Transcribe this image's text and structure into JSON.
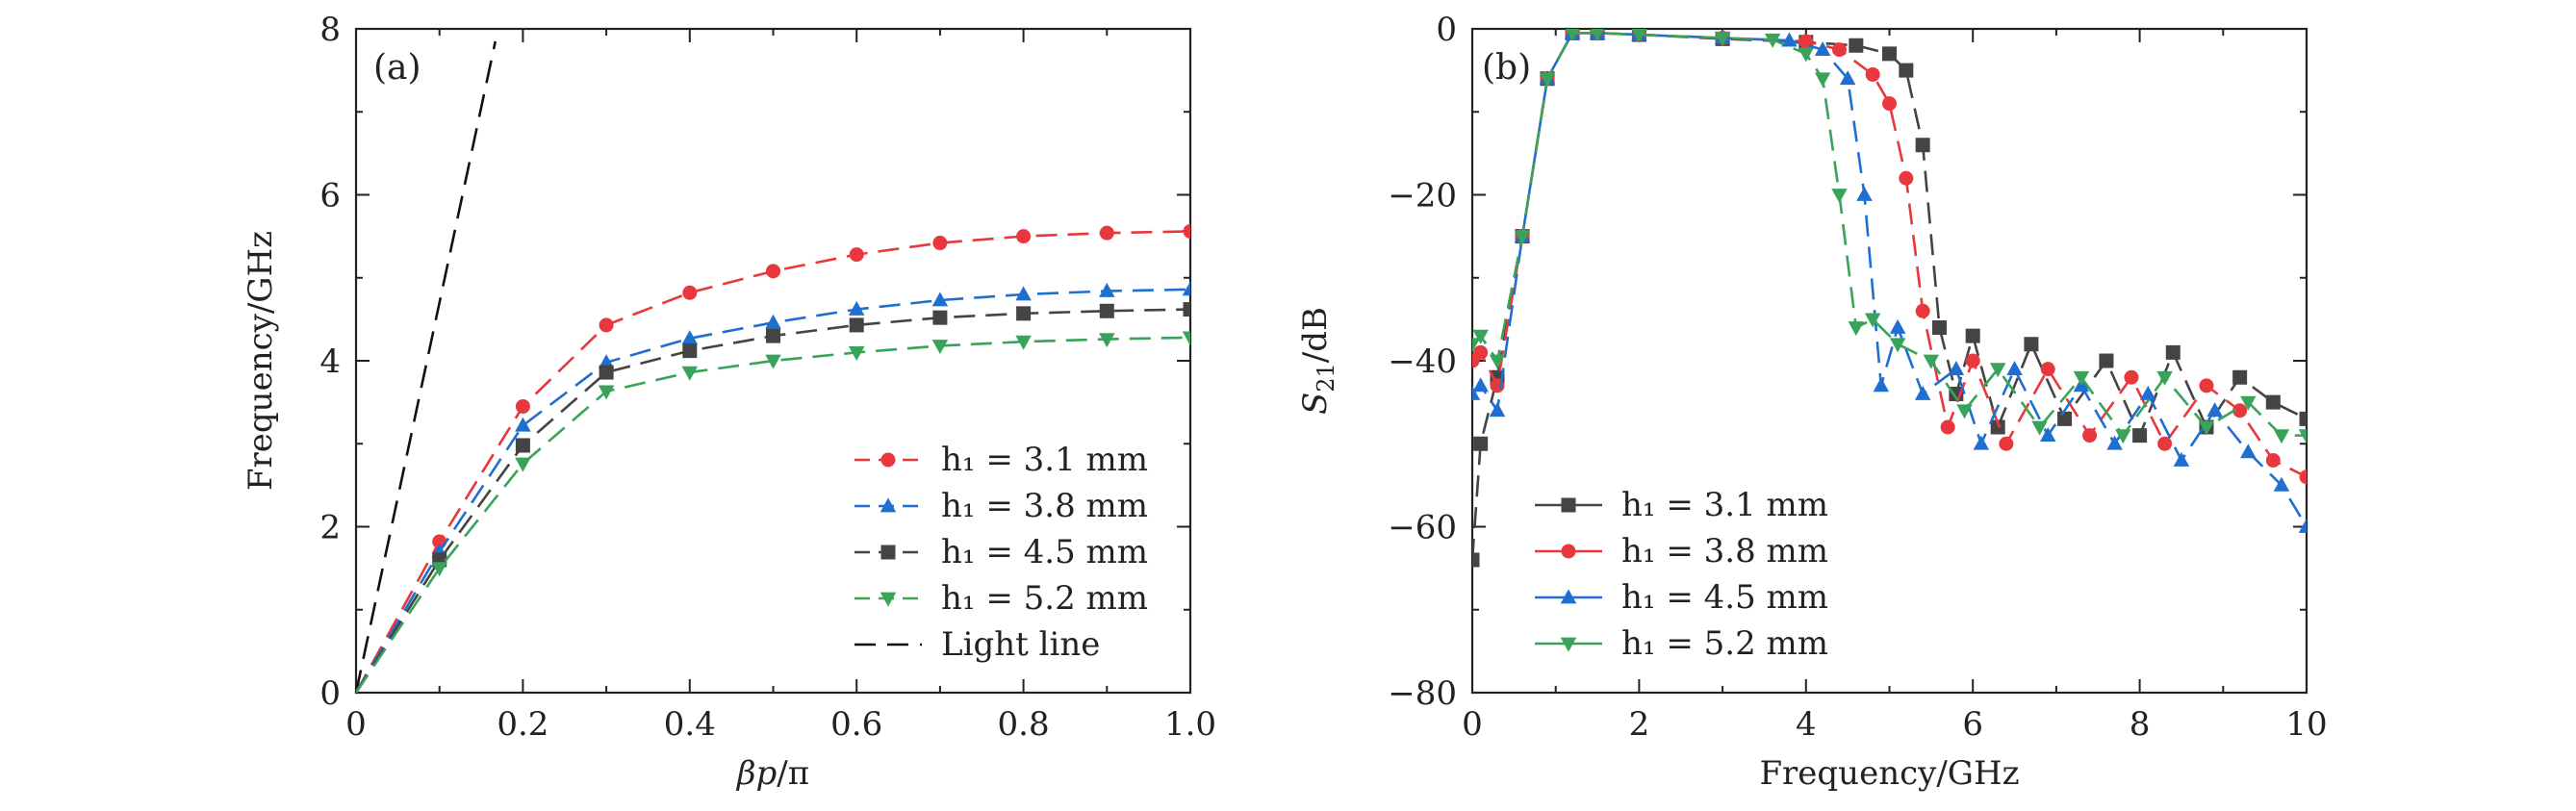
{
  "chart_data": [
    {
      "type": "line",
      "panel_label": "(a)",
      "xlabel": "βp/π",
      "ylabel": "Frequency/GHz",
      "xlim": [
        0,
        1.0
      ],
      "ylim": [
        0,
        8
      ],
      "xticks": [
        "0",
        "0.2",
        "0.4",
        "0.6",
        "0.8",
        "1.0"
      ],
      "yticks": [
        "0",
        "2",
        "4",
        "6",
        "8"
      ],
      "legend_position": "bottom-right",
      "x": [
        0,
        0.1,
        0.2,
        0.3,
        0.4,
        0.5,
        0.6,
        0.7,
        0.8,
        0.9,
        1.0
      ],
      "series": [
        {
          "name": "h1 = 3.1 mm",
          "legend_label": "h₁ = 3.1 mm",
          "color": "#e8383d",
          "marker": "circle",
          "values": [
            0,
            1.82,
            3.45,
            4.43,
            4.82,
            5.08,
            5.28,
            5.42,
            5.5,
            5.54,
            5.56
          ]
        },
        {
          "name": "h1 = 3.8 mm",
          "legend_label": "h₁ = 3.8 mm",
          "color": "#1f6fd0",
          "marker": "triangle-up",
          "values": [
            0,
            1.7,
            3.22,
            3.98,
            4.27,
            4.46,
            4.62,
            4.73,
            4.8,
            4.84,
            4.86
          ]
        },
        {
          "name": "h1 = 4.5 mm",
          "legend_label": "h₁ = 4.5 mm",
          "color": "#444444",
          "marker": "square",
          "values": [
            0,
            1.6,
            2.98,
            3.86,
            4.12,
            4.3,
            4.43,
            4.52,
            4.57,
            4.6,
            4.62
          ]
        },
        {
          "name": "h1 = 5.2 mm",
          "legend_label": "h₁ = 5.2 mm",
          "color": "#3aa35a",
          "marker": "triangle-down",
          "values": [
            0,
            1.5,
            2.76,
            3.63,
            3.86,
            4.0,
            4.1,
            4.18,
            4.23,
            4.26,
            4.28
          ]
        }
      ],
      "light_line": {
        "name": "Light line",
        "color": "#111111",
        "x": [
          0,
          0.167
        ],
        "y": [
          0,
          7.85
        ]
      }
    },
    {
      "type": "line",
      "panel_label": "(b)",
      "xlabel": "Frequency/GHz",
      "ylabel": "S21/dB",
      "xlim": [
        0,
        10
      ],
      "ylim": [
        -80,
        0
      ],
      "xticks": [
        "0",
        "2",
        "4",
        "6",
        "8",
        "10"
      ],
      "yticks": [
        "0",
        "−20",
        "−40",
        "−60",
        "−80"
      ],
      "legend_position": "bottom-left",
      "series": [
        {
          "name": "h1 = 3.1 mm",
          "legend_label": "h₁ = 3.1 mm",
          "color": "#444444",
          "marker": "square",
          "x": [
            0,
            0.1,
            0.3,
            0.6,
            0.9,
            1.2,
            1.5,
            2,
            3,
            4,
            4.6,
            5.0,
            5.2,
            5.4,
            5.6,
            5.8,
            6.0,
            6.3,
            6.7,
            7.1,
            7.6,
            8.0,
            8.4,
            8.8,
            9.2,
            9.6,
            10
          ],
          "values": [
            -64,
            -50,
            -42,
            -25,
            -6,
            -0.5,
            -0.5,
            -0.7,
            -1.2,
            -1.6,
            -2,
            -3,
            -5,
            -14,
            -36,
            -44,
            -37,
            -48,
            -38,
            -47,
            -40,
            -49,
            -39,
            -48,
            -42,
            -45,
            -47
          ]
        },
        {
          "name": "h1 = 3.8 mm",
          "legend_label": "h₁ = 3.8 mm",
          "color": "#e8383d",
          "marker": "circle",
          "x": [
            0,
            0.1,
            0.3,
            0.6,
            0.9,
            1.2,
            1.5,
            2,
            3,
            4,
            4.4,
            4.8,
            5.0,
            5.2,
            5.4,
            5.7,
            6.0,
            6.4,
            6.9,
            7.4,
            7.9,
            8.3,
            8.8,
            9.2,
            9.6,
            10
          ],
          "values": [
            -40,
            -39,
            -43,
            -25,
            -6,
            -0.5,
            -0.5,
            -0.7,
            -1.1,
            -1.5,
            -2.5,
            -5.5,
            -9,
            -18,
            -34,
            -48,
            -40,
            -50,
            -41,
            -49,
            -42,
            -50,
            -43,
            -46,
            -52,
            -54
          ]
        },
        {
          "name": "h1 = 4.5 mm",
          "legend_label": "h₁ = 4.5 mm",
          "color": "#1f6fd0",
          "marker": "triangle-up",
          "x": [
            0,
            0.1,
            0.3,
            0.6,
            0.9,
            1.2,
            1.5,
            2,
            3,
            3.8,
            4.2,
            4.5,
            4.7,
            4.9,
            5.1,
            5.4,
            5.8,
            6.1,
            6.5,
            6.9,
            7.3,
            7.7,
            8.1,
            8.5,
            8.9,
            9.3,
            9.7,
            10
          ],
          "values": [
            -44,
            -43,
            -46,
            -25,
            -6,
            -0.5,
            -0.5,
            -0.7,
            -1.1,
            -1.4,
            -2.5,
            -6,
            -20,
            -43,
            -36,
            -44,
            -41,
            -50,
            -41,
            -49,
            -43,
            -50,
            -44,
            -52,
            -46,
            -51,
            -55,
            -60
          ]
        },
        {
          "name": "h1 = 5.2 mm",
          "legend_label": "h₁ = 5.2 mm",
          "color": "#3aa35a",
          "marker": "triangle-down",
          "x": [
            0,
            0.1,
            0.3,
            0.6,
            0.9,
            1.2,
            1.5,
            2,
            3,
            3.6,
            4.0,
            4.2,
            4.4,
            4.6,
            4.8,
            5.1,
            5.5,
            5.9,
            6.3,
            6.8,
            7.3,
            7.8,
            8.3,
            8.8,
            9.3,
            9.7,
            10
          ],
          "values": [
            -38,
            -37,
            -40,
            -25,
            -6,
            -0.5,
            -0.5,
            -0.7,
            -1.1,
            -1.3,
            -3,
            -6,
            -20,
            -36,
            -35,
            -38,
            -40,
            -46,
            -41,
            -48,
            -42,
            -49,
            -42,
            -48,
            -45,
            -49,
            -49
          ]
        }
      ]
    }
  ]
}
